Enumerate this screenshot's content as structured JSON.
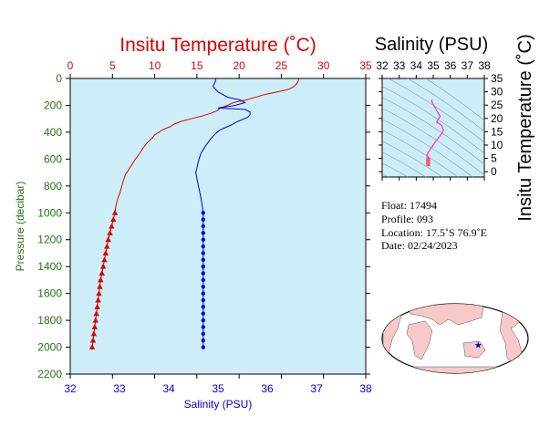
{
  "colors": {
    "temperature": "#e00000",
    "salinity": "#0000dd",
    "plot_bg": "#cdeef8",
    "pressure_label": "#2c6e1e",
    "ts_curve": "#ff2ad4",
    "ts_start": "#ff5f5f",
    "land": "#f7c9c9",
    "ocean": "#ffffff",
    "float_marker": "#0000cc"
  },
  "float_info": {
    "float": "Float:  17494",
    "profile": "Profile:  093",
    "location": "Location:  17.5˚S  76.9˚E",
    "date": "Date:  02/24/2023"
  },
  "chart_data": [
    {
      "type": "line",
      "title": "Insitu Temperature (˚C)",
      "xlabel": "Salinity (PSU)",
      "ylabel": "Pressure (decibar)",
      "ylim": [
        0,
        2200
      ],
      "y_ticks": [
        0,
        200,
        400,
        600,
        800,
        1000,
        1200,
        1400,
        1600,
        1800,
        2000,
        2200
      ],
      "y_inverted": true,
      "grid": false,
      "axes": {
        "temperature": {
          "position": "top",
          "xlim": [
            0,
            35
          ],
          "ticks": [
            0,
            5,
            10,
            15,
            20,
            25,
            30,
            35
          ]
        },
        "salinity": {
          "position": "bottom",
          "xlim": [
            32,
            38
          ],
          "ticks": [
            32,
            33,
            34,
            35,
            36,
            37,
            38
          ]
        }
      },
      "series": [
        {
          "name": "Insitu Temperature (˚C)",
          "axis": "temperature",
          "marker": "triangle",
          "points": [
            [
              27.1,
              0
            ],
            [
              27.0,
              20
            ],
            [
              26.8,
              40
            ],
            [
              26.5,
              60
            ],
            [
              25.9,
              80
            ],
            [
              24.5,
              100
            ],
            [
              23.0,
              120
            ],
            [
              20.8,
              160
            ],
            [
              19.3,
              180
            ],
            [
              18.6,
              200
            ],
            [
              17.8,
              220
            ],
            [
              17.4,
              240
            ],
            [
              16.6,
              260
            ],
            [
              15.6,
              280
            ],
            [
              14.3,
              300
            ],
            [
              13.1,
              320
            ],
            [
              12.3,
              340
            ],
            [
              11.8,
              360
            ],
            [
              11.0,
              380
            ],
            [
              10.5,
              400
            ],
            [
              10.0,
              420
            ],
            [
              9.6,
              450
            ],
            [
              9.1,
              480
            ],
            [
              8.6,
              520
            ],
            [
              8.2,
              560
            ],
            [
              7.7,
              600
            ],
            [
              7.3,
              640
            ],
            [
              6.9,
              680
            ],
            [
              6.5,
              720
            ],
            [
              6.3,
              760
            ],
            [
              6.1,
              800
            ],
            [
              5.9,
              850
            ],
            [
              5.6,
              900
            ],
            [
              5.4,
              950
            ],
            [
              5.3,
              1000
            ],
            [
              5.1,
              1050
            ],
            [
              4.9,
              1100
            ],
            [
              4.7,
              1150
            ],
            [
              4.5,
              1200
            ],
            [
              4.35,
              1250
            ],
            [
              4.2,
              1300
            ],
            [
              4.05,
              1350
            ],
            [
              3.9,
              1400
            ],
            [
              3.75,
              1450
            ],
            [
              3.6,
              1500
            ],
            [
              3.5,
              1550
            ],
            [
              3.4,
              1600
            ],
            [
              3.3,
              1650
            ],
            [
              3.2,
              1700
            ],
            [
              3.1,
              1750
            ],
            [
              3.0,
              1800
            ],
            [
              2.9,
              1850
            ],
            [
              2.8,
              1900
            ],
            [
              2.7,
              1950
            ],
            [
              2.6,
              2000
            ]
          ]
        },
        {
          "name": "Salinity (PSU)",
          "axis": "salinity",
          "marker": "dot",
          "points": [
            [
              34.95,
              0
            ],
            [
              34.95,
              20
            ],
            [
              34.9,
              60
            ],
            [
              35.0,
              100
            ],
            [
              35.2,
              140
            ],
            [
              35.45,
              160
            ],
            [
              35.55,
              180
            ],
            [
              35.35,
              200
            ],
            [
              35.0,
              220
            ],
            [
              35.55,
              230
            ],
            [
              35.65,
              250
            ],
            [
              35.65,
              270
            ],
            [
              35.6,
              290
            ],
            [
              35.4,
              320
            ],
            [
              35.25,
              350
            ],
            [
              35.05,
              380
            ],
            [
              34.95,
              410
            ],
            [
              34.85,
              450
            ],
            [
              34.75,
              500
            ],
            [
              34.65,
              560
            ],
            [
              34.6,
              620
            ],
            [
              34.55,
              700
            ],
            [
              34.58,
              760
            ],
            [
              34.62,
              830
            ],
            [
              34.66,
              900
            ],
            [
              34.68,
              950
            ],
            [
              34.7,
              1000
            ],
            [
              34.7,
              1050
            ],
            [
              34.7,
              1100
            ],
            [
              34.7,
              1150
            ],
            [
              34.7,
              1200
            ],
            [
              34.7,
              1250
            ],
            [
              34.7,
              1300
            ],
            [
              34.7,
              1350
            ],
            [
              34.7,
              1400
            ],
            [
              34.7,
              1450
            ],
            [
              34.7,
              1500
            ],
            [
              34.7,
              1550
            ],
            [
              34.7,
              1600
            ],
            [
              34.7,
              1650
            ],
            [
              34.7,
              1700
            ],
            [
              34.7,
              1750
            ],
            [
              34.7,
              1800
            ],
            [
              34.7,
              1850
            ],
            [
              34.7,
              1900
            ],
            [
              34.7,
              1950
            ],
            [
              34.7,
              2000
            ]
          ]
        }
      ]
    },
    {
      "type": "scatter",
      "title": "Salinity (PSU)",
      "ylabel": "Insitu Temperature (˚C)",
      "xlim": [
        32,
        38
      ],
      "x_ticks": [
        32,
        33,
        34,
        35,
        36,
        37,
        38
      ],
      "ylim": [
        -2,
        35
      ],
      "y_ticks": [
        0,
        5,
        10,
        15,
        20,
        25,
        30,
        35
      ],
      "density_contours": true,
      "points": [
        [
          34.95,
          27.1
        ],
        [
          34.9,
          26.5
        ],
        [
          35.2,
          23.0
        ],
        [
          35.4,
          20.8
        ],
        [
          35.2,
          18.6
        ],
        [
          35.5,
          17.4
        ],
        [
          35.6,
          15.6
        ],
        [
          35.5,
          14.3
        ],
        [
          35.25,
          12.3
        ],
        [
          35.05,
          10.5
        ],
        [
          34.9,
          9.1
        ],
        [
          34.75,
          7.7
        ],
        [
          34.62,
          6.3
        ],
        [
          34.68,
          5.6
        ],
        [
          34.7,
          4.9
        ],
        [
          34.7,
          4.2
        ],
        [
          34.7,
          3.5
        ],
        [
          34.7,
          2.6
        ]
      ]
    }
  ],
  "map": {
    "float_location": {
      "lat": -17.5,
      "lon": 76.9
    }
  }
}
